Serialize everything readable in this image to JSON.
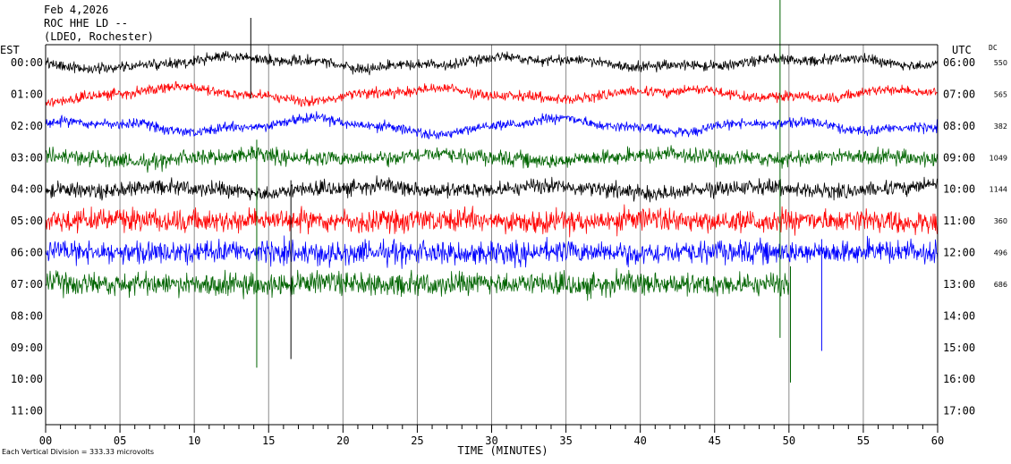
{
  "header": {
    "date": "Feb 4,2026",
    "station": "ROC HHE LD --",
    "network": "(LDEO, Rochester)"
  },
  "chart_data": {
    "type": "line",
    "title": "",
    "xlabel": "TIME (MINUTES)",
    "left_axis_title": "EST",
    "right_axis_title": "UTC",
    "dc_title": "DC",
    "xlim": [
      0,
      60
    ],
    "x_ticks": [
      "00",
      "05",
      "10",
      "15",
      "20",
      "25",
      "30",
      "35",
      "40",
      "45",
      "50",
      "55",
      "60"
    ],
    "rows_est": [
      "00:00",
      "01:00",
      "02:00",
      "03:00",
      "04:00",
      "05:00",
      "06:00",
      "07:00",
      "08:00",
      "09:00",
      "10:00",
      "11:00"
    ],
    "rows_utc": [
      "06:00",
      "07:00",
      "08:00",
      "09:00",
      "10:00",
      "11:00",
      "12:00",
      "13:00",
      "14:00",
      "15:00",
      "16:00",
      "17:00"
    ],
    "dc_offsets": [
      "550",
      "565",
      "382",
      "1049",
      "1144",
      "360",
      "496",
      "686"
    ],
    "trace_colors": [
      "#000000",
      "#ff0000",
      "#0000ff",
      "#006400"
    ],
    "traces_recorded": 8,
    "last_trace_end_minute": 50,
    "footnote": "Each Vertical Division =  333.33 microvolts"
  }
}
